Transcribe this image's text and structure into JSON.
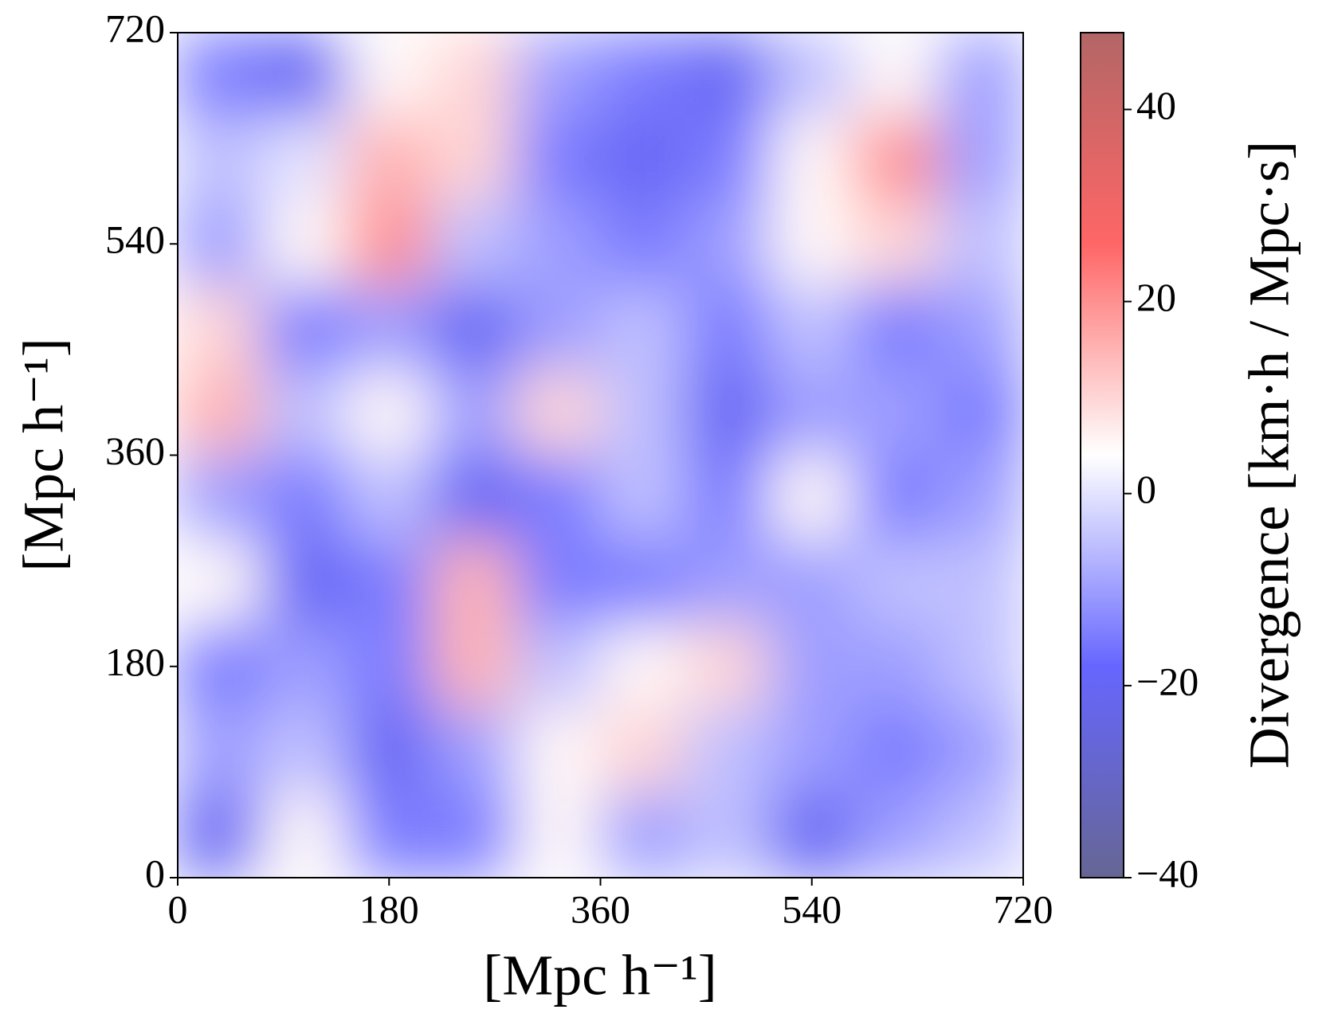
{
  "chart_data": {
    "type": "heatmap",
    "x_label": "[Mpc h⁻¹]",
    "y_label": "[Mpc h⁻¹]",
    "colorbar_label": "Divergence [km·h / Mpc·s]",
    "colormap": "seismic",
    "xlim": [
      0,
      720
    ],
    "ylim": [
      0,
      720
    ],
    "xticks": [
      0,
      180,
      360,
      540,
      720
    ],
    "yticks": [
      0,
      180,
      360,
      540,
      720
    ],
    "clim": [
      -40,
      48
    ],
    "cticks": [
      {
        "value": -40,
        "label": "−40"
      },
      {
        "value": -20,
        "label": "−20"
      },
      0,
      20,
      40
    ],
    "z": [
      [
        -15,
        -20,
        5,
        10,
        -10,
        -15,
        -20,
        -5,
        5,
        -10
      ],
      [
        -5,
        0,
        15,
        10,
        -15,
        -20,
        -15,
        5,
        20,
        -10
      ],
      [
        -10,
        5,
        20,
        -5,
        -10,
        -15,
        -10,
        5,
        10,
        -5
      ],
      [
        10,
        -15,
        -10,
        -20,
        -10,
        -5,
        -15,
        -5,
        -15,
        -10
      ],
      [
        15,
        -5,
        5,
        -10,
        10,
        -5,
        -20,
        -10,
        -10,
        -15
      ],
      [
        -10,
        -15,
        -5,
        -20,
        -15,
        -5,
        -15,
        5,
        -15,
        -10
      ],
      [
        5,
        -20,
        -15,
        15,
        -15,
        -15,
        -10,
        -10,
        -5,
        -5
      ],
      [
        -15,
        -10,
        -15,
        15,
        -5,
        5,
        10,
        -10,
        -10,
        -5
      ],
      [
        -10,
        -5,
        -20,
        -10,
        5,
        10,
        -5,
        -10,
        -15,
        -10
      ],
      [
        -20,
        5,
        -15,
        -15,
        5,
        -10,
        -5,
        -20,
        -10,
        -5
      ]
    ]
  }
}
